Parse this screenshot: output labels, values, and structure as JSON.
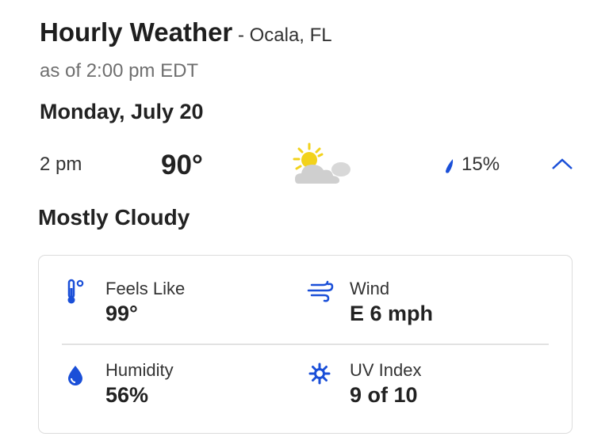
{
  "header": {
    "title": "Hourly Weather",
    "location": " - Ocala, FL",
    "as_of": "as of 2:00 pm EDT"
  },
  "day": "Monday, July 20",
  "hour_row": {
    "time": "2 pm",
    "temperature": "90°",
    "icon": "partly-sunny-cloudy-icon",
    "precip_chance": "15%"
  },
  "condition": "Mostly Cloudy",
  "details": {
    "feels_like": {
      "label": "Feels Like",
      "value": "99°",
      "icon": "thermometer-icon"
    },
    "wind": {
      "label": "Wind",
      "value": "E 6 mph",
      "icon": "wind-icon"
    },
    "humidity": {
      "label": "Humidity",
      "value": "56%",
      "icon": "humidity-drop-icon"
    },
    "uv": {
      "label": "UV Index",
      "value": "9 of 10",
      "icon": "uv-sun-icon"
    }
  },
  "colors": {
    "accent": "#1a4fd8",
    "sun": "#f2d21b",
    "cloud": "#cfcfcf"
  }
}
